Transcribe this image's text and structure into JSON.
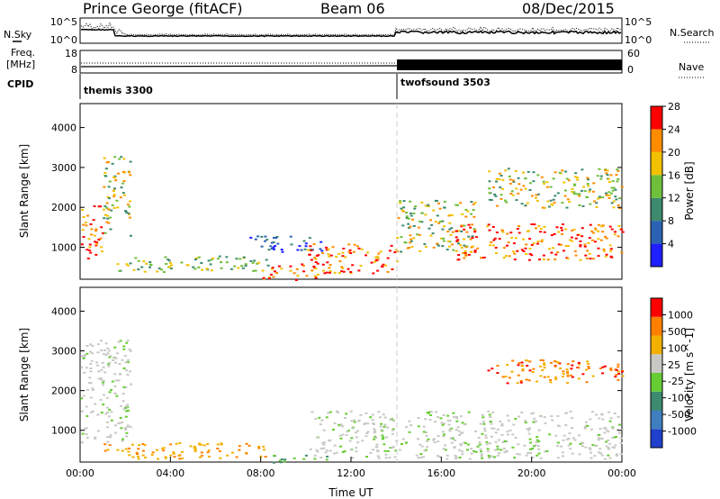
{
  "header": {
    "station": "Prince George (fitACF)",
    "beam": "Beam 06",
    "date": "08/Dec/2015"
  },
  "status_panels": {
    "nsky_label": "N.Sky",
    "nsky_ticks": [
      "10^5",
      "10^0"
    ],
    "nsearch_label": "N.Search",
    "nsearch_ticks": [
      "10^5",
      "10^0"
    ],
    "freq_label": [
      "Freq.",
      "[MHz]"
    ],
    "freq_ticks": [
      "18",
      "8"
    ],
    "nave_label": "Nave",
    "nave_ticks": [
      "60",
      "0"
    ],
    "cpid_label": "CPID",
    "cpid_segments": [
      {
        "name": "themis 3300",
        "start_hour": 0
      },
      {
        "name": "twofsound 3503",
        "start_hour": 14
      }
    ]
  },
  "chart_data": [
    {
      "type": "heatmap",
      "title": "",
      "xlabel": "",
      "ylabel": "Slant Range [km]",
      "xlim": [
        0,
        24
      ],
      "ylim": [
        200,
        4600
      ],
      "yticks": [
        1000,
        2000,
        3000,
        4000
      ],
      "colorbar": {
        "label": "Power [dB]",
        "ticks": [
          "4",
          "8",
          "12",
          "16",
          "20",
          "24",
          "28"
        ],
        "colors": [
          "#1f1fff",
          "#2b62b4",
          "#3d8a6e",
          "#6fbf3b",
          "#f2c200",
          "#ff8c00",
          "#ff0000"
        ]
      },
      "echo_regions": [
        {
          "hours": [
            0.0,
            1.0
          ],
          "km": [
            700,
            2100
          ],
          "level": "24-28"
        },
        {
          "hours": [
            1.0,
            2.2
          ],
          "km": [
            1300,
            3300
          ],
          "level": "12-24"
        },
        {
          "hours": [
            1.5,
            8.5
          ],
          "km": [
            400,
            800
          ],
          "level": "12-20"
        },
        {
          "hours": [
            7.5,
            10.8
          ],
          "km": [
            900,
            1300
          ],
          "level": "4-12"
        },
        {
          "hours": [
            8.0,
            10.5
          ],
          "km": [
            200,
            600
          ],
          "level": "24-28"
        },
        {
          "hours": [
            10.0,
            14.0
          ],
          "km": [
            350,
            1100
          ],
          "level": "24-28"
        },
        {
          "hours": [
            14.0,
            17.5
          ],
          "km": [
            900,
            2200
          ],
          "level": "12-24"
        },
        {
          "hours": [
            16.5,
            24.0
          ],
          "km": [
            700,
            1600
          ],
          "level": "24-28"
        },
        {
          "hours": [
            18.0,
            24.0
          ],
          "km": [
            2000,
            3000
          ],
          "level": "12-24"
        }
      ]
    },
    {
      "type": "heatmap",
      "title": "",
      "xlabel": "Time UT",
      "ylabel": "Slant Range [km]",
      "xlim": [
        0,
        24
      ],
      "ylim": [
        200,
        4600
      ],
      "yticks": [
        1000,
        2000,
        3000,
        4000
      ],
      "xticks": [
        "00:00",
        "04:00",
        "08:00",
        "12:00",
        "16:00",
        "20:00",
        "00:00"
      ],
      "colorbar": {
        "label": "Velocity [m s^-1]",
        "ticks": [
          "1000",
          "500",
          "100",
          "25",
          "-25",
          "-100",
          "-500",
          "-1000"
        ],
        "colors": [
          "#1f3fcc",
          "#3f7fbf",
          "#3d8a6e",
          "#66cc33",
          "#c8c8c4",
          "#f2b000",
          "#ff8000",
          "#ff0000"
        ]
      },
      "echo_regions": [
        {
          "hours": [
            0.0,
            2.2
          ],
          "km": [
            700,
            3300
          ],
          "level": "-25..25"
        },
        {
          "hours": [
            1.0,
            8.5
          ],
          "km": [
            300,
            700
          ],
          "level": "-100"
        },
        {
          "hours": [
            8.5,
            11.0
          ],
          "km": [
            200,
            400
          ],
          "level": "100"
        },
        {
          "hours": [
            10.0,
            24.0
          ],
          "km": [
            300,
            1500
          ],
          "level": "-25..25"
        },
        {
          "hours": [
            18.0,
            24.0
          ],
          "km": [
            2200,
            2800
          ],
          "level": "-500"
        }
      ]
    }
  ]
}
